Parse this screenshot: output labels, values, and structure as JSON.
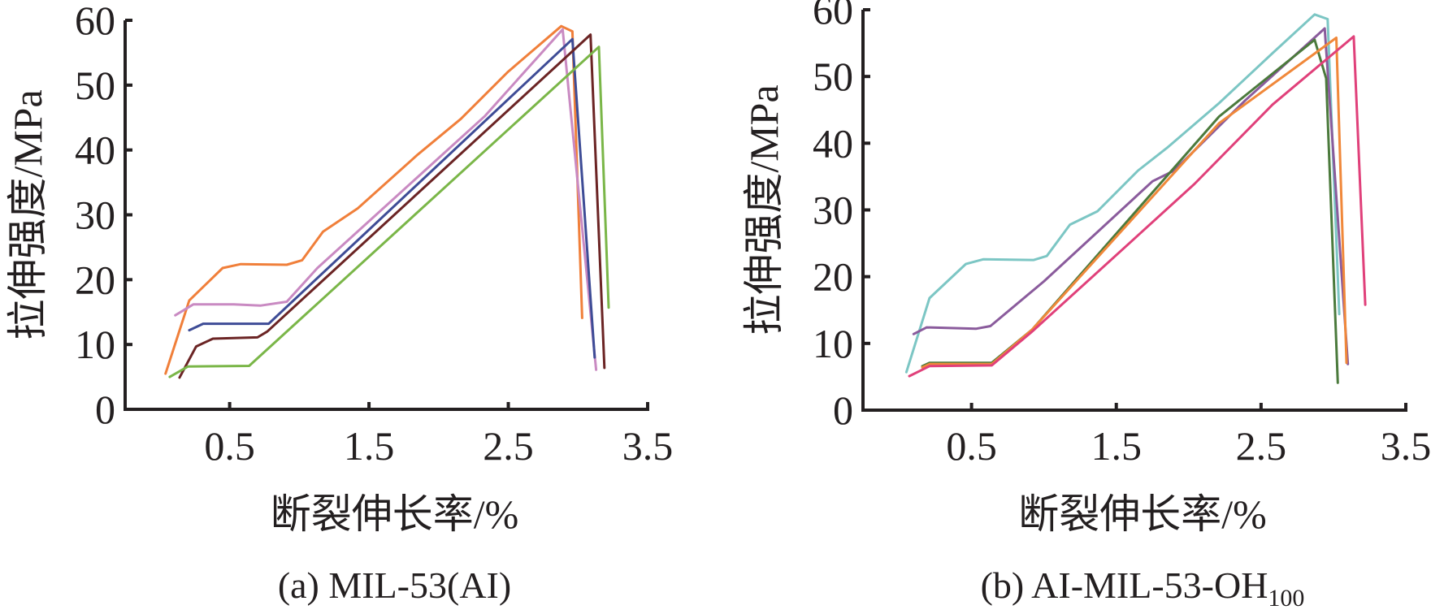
{
  "chart_data": [
    {
      "type": "line",
      "caption": "(a) MIL-53(AI)",
      "caption_sub": "",
      "xlabel": "断裂伸长率/%",
      "ylabel": "拉伸强度/MPa",
      "xlim": [
        -0.25,
        3.5
      ],
      "ylim": [
        0,
        60
      ],
      "xticks": [
        "0.5",
        "1.5",
        "2.5",
        "3.5"
      ],
      "yticks": [
        "0",
        "10",
        "20",
        "30",
        "40",
        "50",
        "60"
      ],
      "grid": false,
      "series": [
        {
          "color": "#f07f3a",
          "points": [
            [
              0.04,
              5.5
            ],
            [
              0.21,
              16.8
            ],
            [
              0.45,
              21.8
            ],
            [
              0.58,
              22.4
            ],
            [
              0.91,
              22.3
            ],
            [
              1.02,
              23.0
            ],
            [
              1.17,
              27.4
            ],
            [
              1.42,
              31.0
            ],
            [
              1.85,
              39.3
            ],
            [
              2.16,
              44.8
            ],
            [
              2.5,
              52.1
            ],
            [
              2.88,
              59.1
            ],
            [
              2.96,
              58.3
            ],
            [
              3.03,
              14.1
            ]
          ]
        },
        {
          "color": "#c98ac2",
          "points": [
            [
              0.11,
              14.5
            ],
            [
              0.24,
              16.2
            ],
            [
              0.53,
              16.2
            ],
            [
              0.72,
              16.0
            ],
            [
              0.91,
              16.6
            ],
            [
              1.13,
              21.8
            ],
            [
              2.33,
              45.2
            ],
            [
              2.89,
              58.6
            ],
            [
              3.13,
              6.1
            ]
          ]
        },
        {
          "color": "#3e4c96",
          "points": [
            [
              0.21,
              12.2
            ],
            [
              0.31,
              13.2
            ],
            [
              0.78,
              13.2
            ],
            [
              2.96,
              57.1
            ],
            [
              3.12,
              8.0
            ]
          ]
        },
        {
          "color": "#6b2424",
          "points": [
            [
              0.14,
              4.9
            ],
            [
              0.26,
              9.7
            ],
            [
              0.38,
              10.9
            ],
            [
              0.7,
              11.1
            ],
            [
              0.77,
              12.0
            ],
            [
              3.09,
              57.8
            ],
            [
              3.19,
              6.4
            ]
          ]
        },
        {
          "color": "#7ab648",
          "points": [
            [
              0.07,
              5.0
            ],
            [
              0.2,
              6.6
            ],
            [
              0.64,
              6.7
            ],
            [
              3.15,
              55.9
            ],
            [
              3.22,
              15.7
            ]
          ]
        }
      ]
    },
    {
      "type": "line",
      "caption": "(b) AI-MIL-53-OH",
      "caption_sub": "100",
      "xlabel": "断裂伸长率/%",
      "ylabel": "拉伸强度/MPa",
      "xlim": [
        -0.25,
        3.5
      ],
      "ylim": [
        0,
        60
      ],
      "xticks": [
        "0.5",
        "1.5",
        "2.5",
        "3.5"
      ],
      "yticks": [
        "0",
        "10",
        "20",
        "30",
        "40",
        "50",
        "60"
      ],
      "grid": false,
      "series": [
        {
          "color": "#7cc6c4",
          "points": [
            [
              0.05,
              5.7
            ],
            [
              0.21,
              16.8
            ],
            [
              0.46,
              21.9
            ],
            [
              0.58,
              22.6
            ],
            [
              0.93,
              22.5
            ],
            [
              1.02,
              23.1
            ],
            [
              1.18,
              27.8
            ],
            [
              1.37,
              29.8
            ],
            [
              1.65,
              35.9
            ],
            [
              1.85,
              39.3
            ],
            [
              2.21,
              46.0
            ],
            [
              2.58,
              53.5
            ],
            [
              2.87,
              59.3
            ],
            [
              2.96,
              58.6
            ],
            [
              3.04,
              14.4
            ]
          ]
        },
        {
          "color": "#8a5b9c",
          "points": [
            [
              0.1,
              11.4
            ],
            [
              0.19,
              12.4
            ],
            [
              0.53,
              12.2
            ],
            [
              0.63,
              12.6
            ],
            [
              1.0,
              19.3
            ],
            [
              1.75,
              34.3
            ],
            [
              1.9,
              35.9
            ],
            [
              2.39,
              46.4
            ],
            [
              2.94,
              57.2
            ],
            [
              3.1,
              6.9
            ]
          ]
        },
        {
          "color": "#4b7a3c",
          "points": [
            [
              0.16,
              6.6
            ],
            [
              0.21,
              7.1
            ],
            [
              0.64,
              7.1
            ],
            [
              0.92,
              12.1
            ],
            [
              2.21,
              44.0
            ],
            [
              2.87,
              55.5
            ],
            [
              2.95,
              49.7
            ],
            [
              3.03,
              4.1
            ]
          ]
        },
        {
          "color": "#f0883a",
          "points": [
            [
              0.16,
              6.4
            ],
            [
              0.21,
              6.9
            ],
            [
              0.64,
              6.9
            ],
            [
              0.92,
              12.1
            ],
            [
              2.21,
              43.0
            ],
            [
              3.02,
              55.8
            ],
            [
              3.09,
              7.1
            ]
          ]
        },
        {
          "color": "#e0407a",
          "points": [
            [
              0.07,
              5.1
            ],
            [
              0.21,
              6.6
            ],
            [
              0.64,
              6.7
            ],
            [
              0.92,
              11.8
            ],
            [
              1.65,
              26.2
            ],
            [
              2.04,
              33.9
            ],
            [
              2.58,
              45.8
            ],
            [
              3.14,
              56.0
            ],
            [
              3.22,
              15.8
            ]
          ]
        }
      ]
    }
  ]
}
